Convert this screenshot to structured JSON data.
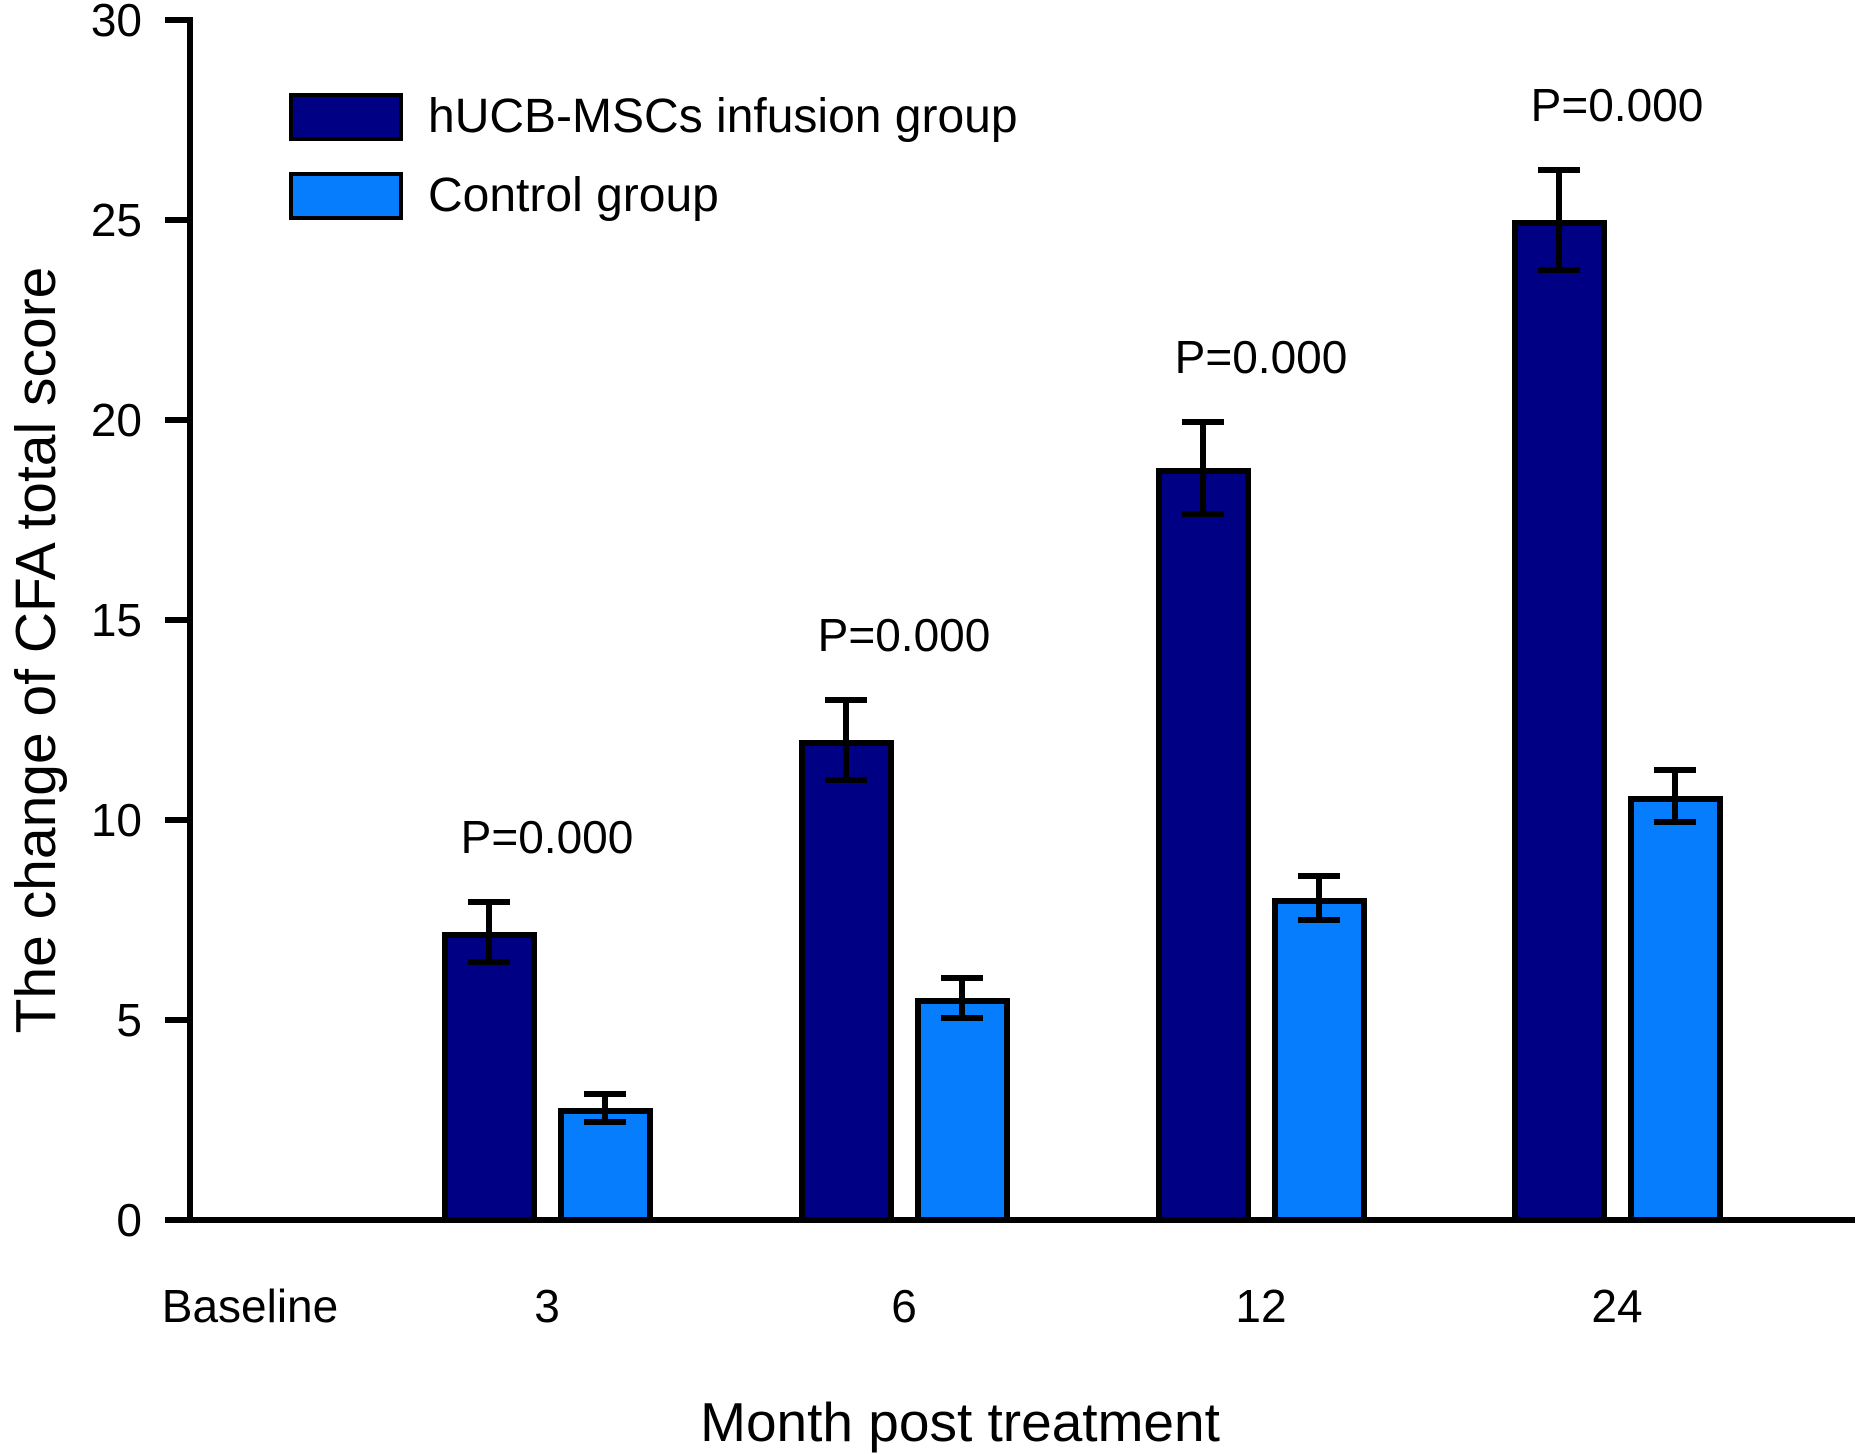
{
  "figure": {
    "background": "#ffffff",
    "axis_color": "#000000",
    "text_color": "#000000"
  },
  "chart_data": {
    "type": "bar",
    "title": "",
    "xlabel": "Month post treatment",
    "ylabel": "The change of CFA total score",
    "categories": [
      "Baseline",
      "3",
      "6",
      "12",
      "24"
    ],
    "series": [
      {
        "name": "hUCB-MSCs infusion group",
        "color": "#000084",
        "values": [
          null,
          7.2,
          12.0,
          18.8,
          25.0
        ],
        "errors": [
          null,
          0.75,
          1.0,
          1.15,
          1.25
        ]
      },
      {
        "name": "Control group",
        "color": "#067dfc",
        "values": [
          null,
          2.8,
          5.55,
          8.05,
          10.6
        ],
        "errors": [
          null,
          0.35,
          0.5,
          0.55,
          0.65
        ]
      }
    ],
    "annotations": [
      {
        "category": "3",
        "text": "P=0.000"
      },
      {
        "category": "6",
        "text": "P=0.000"
      },
      {
        "category": "12",
        "text": "P=0.000"
      },
      {
        "category": "24",
        "text": "P=0.000"
      }
    ],
    "ylim": [
      0,
      30
    ],
    "yticks": [
      0,
      5,
      10,
      15,
      20,
      25,
      30
    ],
    "grid": false,
    "error_bars": "both",
    "legend_position": "upper-left"
  }
}
